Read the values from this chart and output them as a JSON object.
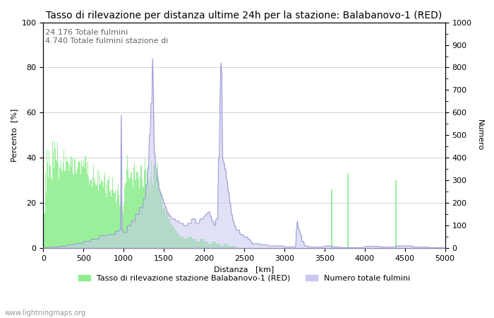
{
  "title": "Tasso di rilevazione per distanza ultime 24h per la stazione: Balabanovo-1 (RED)",
  "xlabel": "Distanza   [km]",
  "ylabel_left": "Percento  [%]",
  "ylabel_right": "Numero",
  "xlim": [
    0,
    5000
  ],
  "ylim_left": [
    0,
    100
  ],
  "ylim_right": [
    0,
    1000
  ],
  "annotation": "24.176 Totale fulmini\n4.740 Totale fulmini stazione di",
  "legend_green": "Tasso di rilevazione stazione Balabanovo-1 (RED)",
  "legend_blue": "Numero totale fulmini",
  "watermark": "www.lightningmaps.org",
  "bar_color_green": "#90ee90",
  "area_color_blue": "#c8c8f0",
  "line_color_blue": "#8888cc",
  "title_fontsize": 10,
  "axis_fontsize": 8,
  "tick_fontsize": 8,
  "annotation_fontsize": 8,
  "grid_color": "#aaaaaa"
}
